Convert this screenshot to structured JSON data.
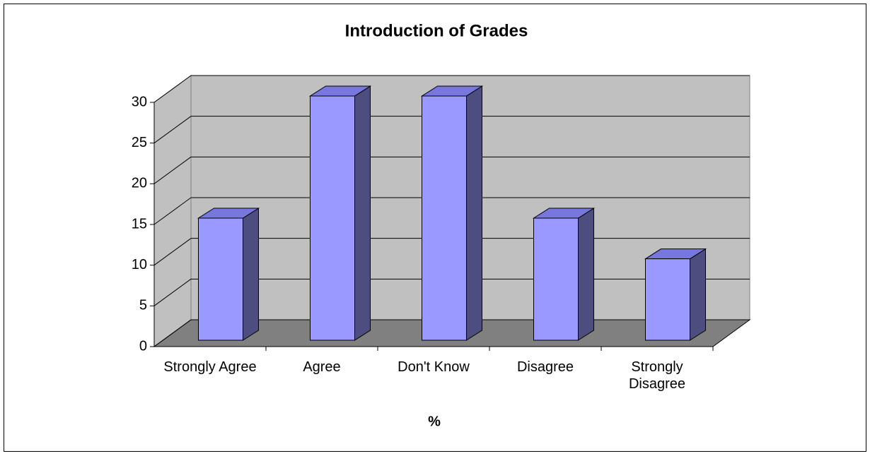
{
  "chart_data": {
    "type": "bar3d",
    "title": "Introduction of Grades",
    "x_label": "%",
    "categories": [
      "Strongly Agree",
      "Agree",
      "Don't Know",
      "Disagree",
      "Strongly Disagree"
    ],
    "values": [
      15,
      30,
      30,
      15,
      10
    ],
    "color": "#9999ff",
    "ylim": [
      0,
      30
    ],
    "yticks": [
      0,
      5,
      10,
      15,
      20,
      25,
      30
    ],
    "grid": true
  }
}
